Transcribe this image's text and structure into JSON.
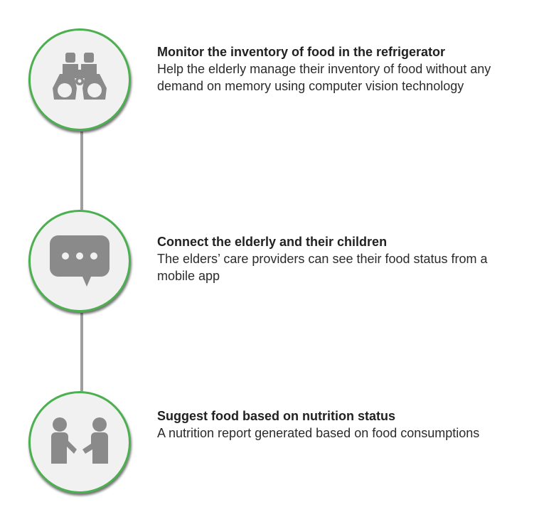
{
  "steps": [
    {
      "icon": "binoculars-icon",
      "title": "Monitor the inventory of food in the refrigerator",
      "description": "Help the elderly manage their inventory of food without any demand on memory using computer vision technology"
    },
    {
      "icon": "chat-bubble-icon",
      "title": "Connect the elderly and their children",
      "description": "The elders’ care providers can see their food status from a mobile app"
    },
    {
      "icon": "handshake-people-icon",
      "title": "Suggest food based on nutrition status",
      "description": "A nutrition report generated based on food consumptions"
    }
  ],
  "colors": {
    "ring": "#4caf50",
    "circle_fill": "#f1f1f1",
    "icon": "#8a8a8a",
    "connector": "#9e9e9e"
  }
}
